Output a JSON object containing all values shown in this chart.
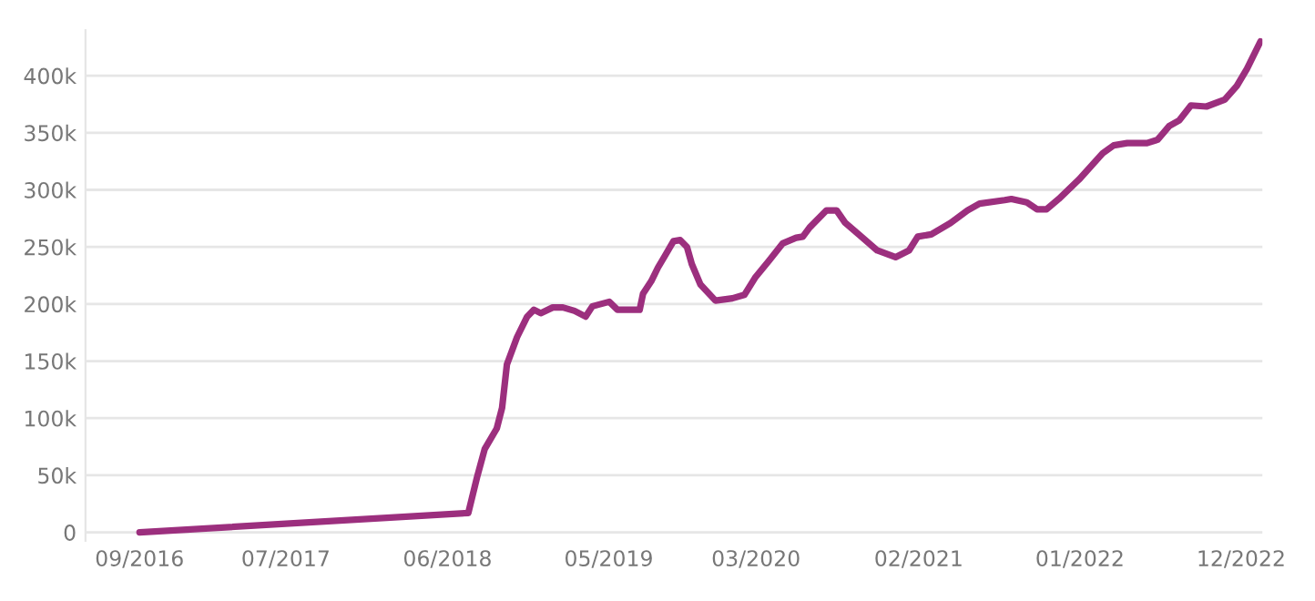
{
  "chart_data": {
    "type": "line",
    "grid": "y",
    "marker": "none",
    "line_style": "solid",
    "legend": false,
    "x": [
      "2016-09-01",
      "2018-07-14",
      "2018-08-01",
      "2018-08-17",
      "2018-09-11",
      "2018-09-22",
      "2018-10-02",
      "2018-10-23",
      "2018-11-13",
      "2018-11-27",
      "2018-12-11",
      "2019-01-05",
      "2019-01-26",
      "2019-02-19",
      "2019-03-14",
      "2019-03-28",
      "2019-05-02",
      "2019-05-19",
      "2019-07-04",
      "2019-07-11",
      "2019-07-28",
      "2019-08-11",
      "2019-08-25",
      "2019-09-12",
      "2019-09-26",
      "2019-10-10",
      "2019-10-20",
      "2019-11-07",
      "2019-12-08",
      "2020-01-12",
      "2020-02-06",
      "2020-02-28",
      "2020-03-28",
      "2020-04-25",
      "2020-05-23",
      "2020-06-06",
      "2020-06-20",
      "2020-07-25",
      "2020-08-15",
      "2020-09-02",
      "2020-09-30",
      "2020-11-07",
      "2020-12-15",
      "2021-01-12",
      "2021-01-30",
      "2021-02-27",
      "2021-04-08",
      "2021-05-13",
      "2021-06-07",
      "2021-07-29",
      "2021-08-12",
      "2021-09-13",
      "2021-10-04",
      "2021-10-24",
      "2021-11-18",
      "2021-12-30",
      "2022-02-17",
      "2022-03-12",
      "2022-04-09",
      "2022-05-20",
      "2022-06-11",
      "2022-07-05",
      "2022-07-26",
      "2022-08-19",
      "2022-09-20",
      "2022-10-28",
      "2022-11-22",
      "2022-12-13",
      "2023-01-10"
    ],
    "series": [
      {
        "color": "#9c2f7e",
        "values": [
          0,
          17000,
          48000,
          73000,
          91000,
          109000,
          147000,
          171000,
          189000,
          195000,
          192000,
          197000,
          197000,
          194000,
          189000,
          198000,
          202000,
          195000,
          195000,
          209000,
          220000,
          232000,
          242000,
          255000,
          256000,
          250000,
          235000,
          217000,
          203000,
          205000,
          208000,
          223000,
          238000,
          253000,
          258000,
          259000,
          267000,
          282000,
          282000,
          271000,
          261000,
          247000,
          241000,
          247000,
          259000,
          261000,
          271000,
          282000,
          288000,
          291000,
          292000,
          289000,
          283000,
          283000,
          292000,
          309000,
          332000,
          339000,
          341000,
          341000,
          344000,
          356000,
          361000,
          374000,
          373000,
          379000,
          391000,
          406000,
          430000
        ]
      }
    ],
    "xlim": [
      "2016-05-12",
      "2023-01-14"
    ],
    "xticks": [
      {
        "value": "2016-09-01",
        "label": "09/2016"
      },
      {
        "value": "2017-07-01",
        "label": "07/2017"
      },
      {
        "value": "2018-06-01",
        "label": "06/2018"
      },
      {
        "value": "2019-05-01",
        "label": "05/2019"
      },
      {
        "value": "2020-03-01",
        "label": "03/2020"
      },
      {
        "value": "2021-02-01",
        "label": "02/2021"
      },
      {
        "value": "2022-01-01",
        "label": "01/2022"
      },
      {
        "value": "2022-12-01",
        "label": "12/2022"
      }
    ],
    "ylim": [
      -7500,
      440000
    ],
    "yticks": [
      {
        "value": 0,
        "label": "0"
      },
      {
        "value": 50000,
        "label": "50k"
      },
      {
        "value": 100000,
        "label": "100k"
      },
      {
        "value": 150000,
        "label": "150k"
      },
      {
        "value": 200000,
        "label": "200k"
      },
      {
        "value": 250000,
        "label": "250k"
      },
      {
        "value": 300000,
        "label": "300k"
      },
      {
        "value": 350000,
        "label": "350k"
      },
      {
        "value": 400000,
        "label": "400k"
      }
    ]
  }
}
